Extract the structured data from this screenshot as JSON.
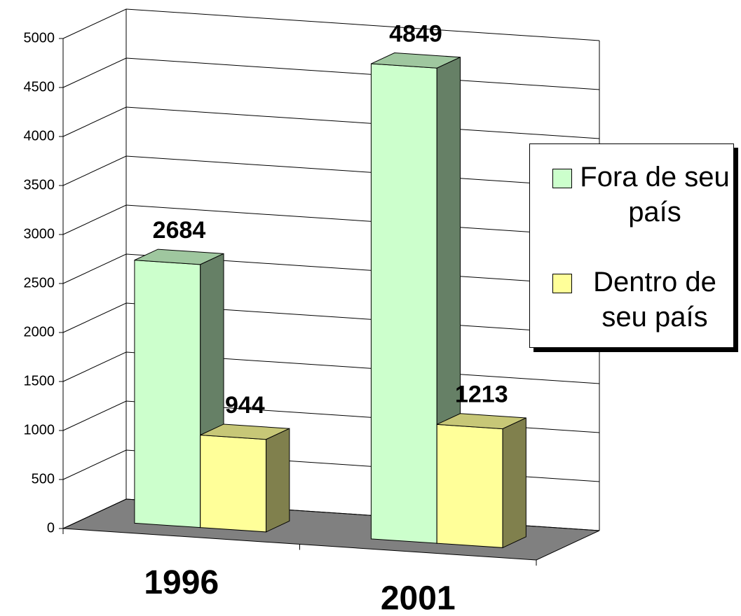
{
  "chart_data": {
    "type": "bar3d",
    "categories": [
      "1996",
      "2001"
    ],
    "series": [
      {
        "name": "Fora de seu país",
        "color": "#ccffcc",
        "values": [
          2684,
          4849
        ]
      },
      {
        "name": "Dentro de seu país",
        "color": "#ffff99",
        "values": [
          944,
          1213
        ]
      }
    ],
    "ylim": [
      0,
      5000
    ],
    "yticks": [
      0,
      500,
      1000,
      1500,
      2000,
      2500,
      3000,
      3500,
      4000,
      4500,
      5000
    ],
    "grid": true,
    "legend": "right"
  }
}
